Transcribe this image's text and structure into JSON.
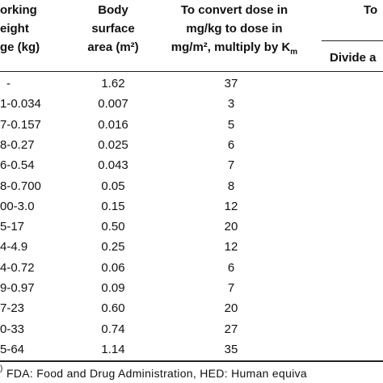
{
  "table": {
    "header": {
      "col1": [
        "orking",
        "eight",
        "ge (kg)"
      ],
      "col2": [
        "Body",
        "surface",
        "area (m²)"
      ],
      "col3": [
        "To convert dose in",
        "mg/kg to dose in",
        "mg/m², multiply by K"
      ],
      "col3_sub": "m",
      "col4_top": "To",
      "col4_sub": "Divide a"
    },
    "rows": [
      [
        "-",
        "1.62",
        "37"
      ],
      [
        "1-0.034",
        "0.007",
        "3"
      ],
      [
        "7-0.157",
        "0.016",
        "5"
      ],
      [
        "8-0.27",
        "0.025",
        "6"
      ],
      [
        "6-0.54",
        "0.043",
        "7"
      ],
      [
        "8-0.700",
        "0.05",
        "8"
      ],
      [
        "00-3.0",
        "0.15",
        "12"
      ],
      [
        "5-17",
        "0.50",
        "20"
      ],
      [
        "4-4.9",
        "0.25",
        "12"
      ],
      [
        "4-0.72",
        "0.06",
        "6"
      ],
      [
        "9-0.97",
        "0.09",
        "7"
      ],
      [
        "7-23",
        "0.60",
        "20"
      ],
      [
        "0-33",
        "0.74",
        "27"
      ],
      [
        "5-64",
        "1.14",
        "35"
      ]
    ],
    "footnote_mark": ")",
    "footnote": "FDA: Food and Drug Administration, HED: Human equiva"
  }
}
